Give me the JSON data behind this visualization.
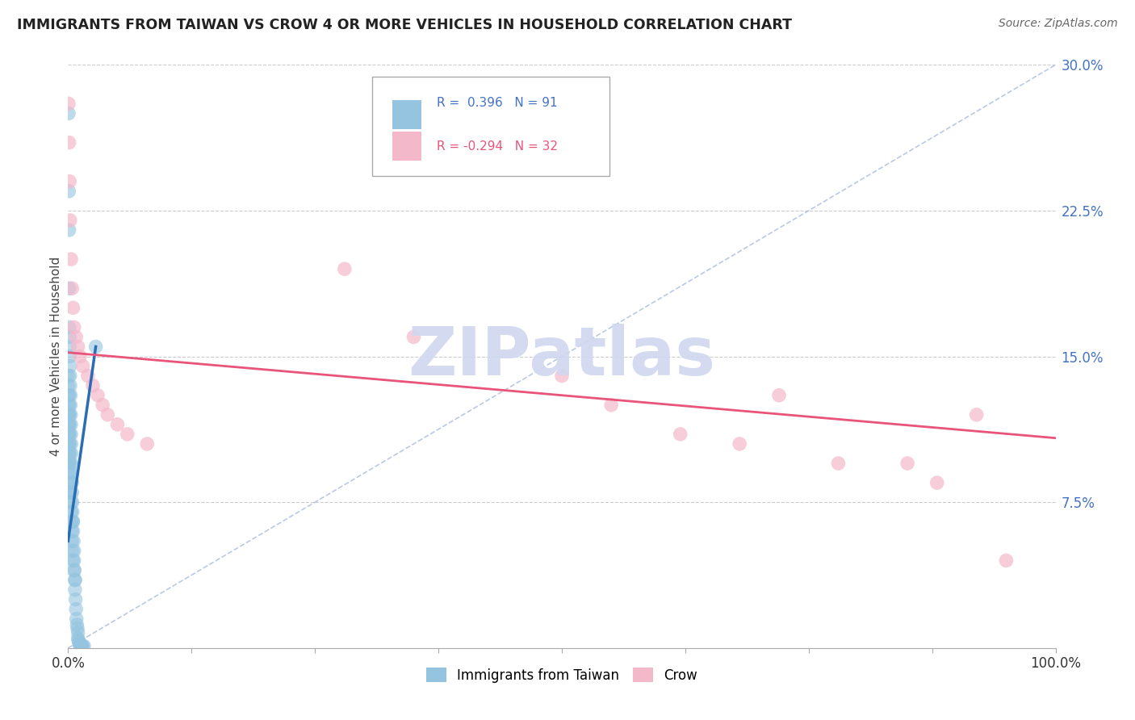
{
  "title": "IMMIGRANTS FROM TAIWAN VS CROW 4 OR MORE VEHICLES IN HOUSEHOLD CORRELATION CHART",
  "source": "Source: ZipAtlas.com",
  "ylabel": "4 or more Vehicles in Household",
  "xlim": [
    0,
    100
  ],
  "ylim": [
    0,
    30
  ],
  "xticks": [
    0,
    12.5,
    25,
    37.5,
    50,
    62.5,
    75,
    87.5,
    100
  ],
  "xticklabels": [
    "0.0%",
    "",
    "",
    "",
    "",
    "",
    "",
    "",
    "100.0%"
  ],
  "yticks": [
    0,
    7.5,
    15,
    22.5,
    30
  ],
  "yticklabels": [
    "",
    "7.5%",
    "15.0%",
    "22.5%",
    "30.0%"
  ],
  "legend1_label": "Immigrants from Taiwan",
  "legend2_label": "Crow",
  "r1": "0.396",
  "n1": "91",
  "r2": "-0.294",
  "n2": "32",
  "color_blue": "#94c4e0",
  "color_pink": "#f4b8cb",
  "line_blue": "#2a6db5",
  "line_pink": "#e8547a",
  "tick_color": "#4472c4",
  "watermark_color": "#d0d8f0",
  "blue_line_x0": 0.0,
  "blue_line_y0": 5.5,
  "blue_line_x1": 2.8,
  "blue_line_y1": 15.5,
  "pink_line_x0": 0.0,
  "pink_line_y0": 15.2,
  "pink_line_x1": 100.0,
  "pink_line_y1": 10.8,
  "blue_x": [
    0.05,
    0.08,
    0.1,
    0.1,
    0.12,
    0.15,
    0.15,
    0.18,
    0.2,
    0.2,
    0.22,
    0.25,
    0.25,
    0.28,
    0.3,
    0.3,
    0.32,
    0.35,
    0.35,
    0.38,
    0.4,
    0.4,
    0.42,
    0.45,
    0.48,
    0.5,
    0.5,
    0.55,
    0.6,
    0.6,
    0.65,
    0.7,
    0.7,
    0.75,
    0.8,
    0.85,
    0.9,
    0.95,
    1.0,
    1.0,
    1.05,
    1.1,
    1.15,
    1.2,
    1.25,
    1.3,
    1.35,
    1.4,
    1.5,
    1.6,
    0.03,
    0.03,
    0.04,
    0.05,
    0.06,
    0.07,
    0.08,
    0.09,
    0.1,
    0.1,
    0.12,
    0.13,
    0.14,
    0.15,
    0.16,
    0.17,
    0.18,
    0.2,
    0.22,
    0.25,
    0.28,
    0.3,
    0.32,
    0.35,
    0.38,
    0.4,
    0.45,
    0.5,
    0.6,
    0.7,
    0.02,
    0.02,
    0.03,
    0.04,
    0.05,
    0.06,
    0.07,
    0.08,
    0.09,
    0.1,
    2.8
  ],
  "blue_y": [
    27.5,
    23.5,
    21.5,
    18.5,
    16.5,
    16.0,
    15.5,
    15.0,
    14.5,
    14.0,
    13.5,
    13.0,
    12.5,
    12.0,
    11.5,
    11.0,
    10.5,
    10.0,
    9.5,
    9.0,
    8.5,
    8.0,
    7.5,
    7.0,
    6.5,
    6.5,
    6.0,
    5.5,
    5.0,
    4.5,
    4.0,
    3.5,
    3.0,
    2.5,
    2.0,
    1.5,
    1.2,
    1.0,
    0.8,
    0.5,
    0.4,
    0.3,
    0.2,
    0.15,
    0.1,
    0.1,
    0.1,
    0.1,
    0.1,
    0.1,
    9.0,
    8.5,
    9.5,
    10.0,
    11.0,
    10.5,
    9.5,
    8.0,
    12.0,
    11.5,
    13.0,
    12.5,
    12.0,
    11.5,
    11.0,
    10.5,
    10.0,
    9.5,
    9.0,
    8.5,
    8.0,
    7.5,
    7.0,
    6.5,
    6.0,
    5.5,
    5.0,
    4.5,
    4.0,
    3.5,
    14.0,
    13.5,
    13.0,
    12.5,
    12.0,
    11.5,
    11.0,
    10.5,
    10.0,
    9.5,
    15.5
  ],
  "pink_x": [
    0.05,
    0.1,
    0.15,
    0.2,
    0.3,
    0.4,
    0.5,
    0.6,
    0.8,
    1.0,
    1.2,
    1.5,
    2.0,
    2.5,
    3.0,
    3.5,
    4.0,
    5.0,
    6.0,
    8.0,
    28.0,
    35.0,
    50.0,
    55.0,
    62.0,
    68.0,
    72.0,
    78.0,
    85.0,
    88.0,
    92.0,
    95.0
  ],
  "pink_y": [
    28.0,
    26.0,
    24.0,
    22.0,
    20.0,
    18.5,
    17.5,
    16.5,
    16.0,
    15.5,
    15.0,
    14.5,
    14.0,
    13.5,
    13.0,
    12.5,
    12.0,
    11.5,
    11.0,
    10.5,
    19.5,
    16.0,
    14.0,
    12.5,
    11.0,
    10.5,
    13.0,
    9.5,
    9.5,
    8.5,
    12.0,
    4.5
  ]
}
